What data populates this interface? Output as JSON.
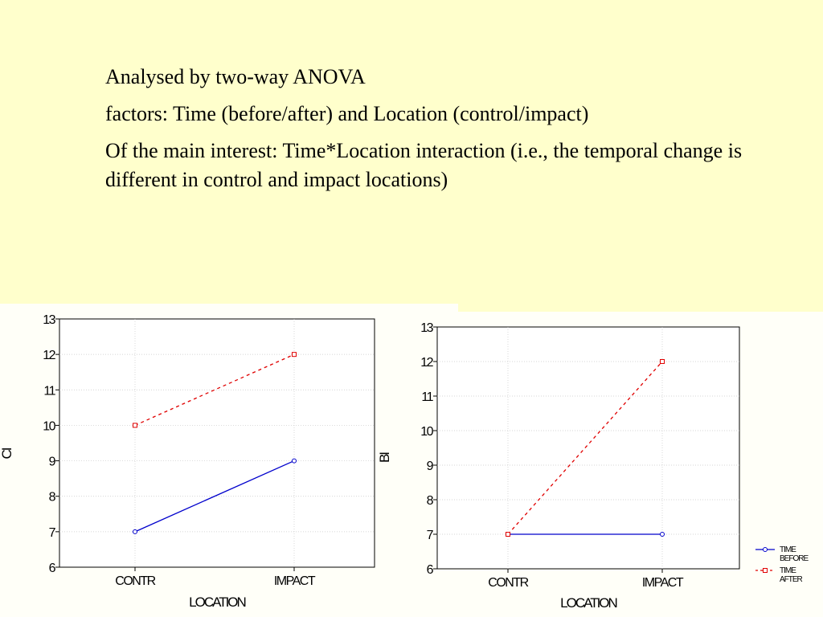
{
  "text": {
    "line1": "Analysed by two-way ANOVA",
    "line2": "factors: Time (before/after) and Location (control/impact)",
    "line3": "Of the main interest: Time*Location interaction (i.e., the temporal change is different in control and impact locations)"
  },
  "colors": {
    "background": "#FFFFCC",
    "before_series": "#0000CC",
    "after_series": "#E00000"
  },
  "chart_data": [
    {
      "type": "line",
      "ylabel": "CI",
      "xlabel": "LOCATION",
      "categories": [
        "CONTR",
        "IMPACT"
      ],
      "ylim": [
        6,
        13
      ],
      "yticks": [
        "6",
        "7",
        "8",
        "9",
        "10",
        "11",
        "12",
        "13"
      ],
      "grid": true,
      "series": [
        {
          "name": "TIME BEFORE",
          "values": [
            7,
            9
          ],
          "style": "solid",
          "marker": "circle",
          "color": "#0000CC"
        },
        {
          "name": "TIME AFTER",
          "values": [
            10,
            12
          ],
          "style": "dashed",
          "marker": "square",
          "color": "#E00000"
        }
      ]
    },
    {
      "type": "line",
      "ylabel": "BI",
      "xlabel": "LOCATION",
      "categories": [
        "CONTR",
        "IMPACT"
      ],
      "ylim": [
        6,
        13
      ],
      "yticks": [
        "6",
        "7",
        "8",
        "9",
        "10",
        "11",
        "12",
        "13"
      ],
      "grid": true,
      "legend": {
        "placement": "bottom-right",
        "items": [
          {
            "line1": "TIME",
            "line2": "BEFORE",
            "color": "#0000CC",
            "marker": "circle",
            "style": "solid"
          },
          {
            "line1": "TIME",
            "line2": "AFTER",
            "color": "#E00000",
            "marker": "square",
            "style": "dashed"
          }
        ]
      },
      "series": [
        {
          "name": "TIME BEFORE",
          "values": [
            7,
            7
          ],
          "style": "solid",
          "marker": "circle",
          "color": "#0000CC"
        },
        {
          "name": "TIME AFTER",
          "values": [
            7,
            12
          ],
          "style": "dashed",
          "marker": "square",
          "color": "#E00000"
        }
      ]
    }
  ]
}
